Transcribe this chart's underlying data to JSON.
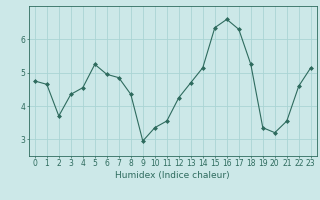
{
  "x": [
    0,
    1,
    2,
    3,
    4,
    5,
    6,
    7,
    8,
    9,
    10,
    11,
    12,
    13,
    14,
    15,
    16,
    17,
    18,
    19,
    20,
    21,
    22,
    23
  ],
  "y": [
    4.75,
    4.65,
    3.7,
    4.35,
    4.55,
    5.25,
    4.95,
    4.85,
    4.35,
    2.95,
    3.35,
    3.55,
    4.25,
    4.7,
    5.15,
    6.35,
    6.6,
    6.3,
    5.25,
    3.35,
    3.2,
    3.55,
    4.6,
    5.15
  ],
  "line_color": "#2e6b5e",
  "marker": "D",
  "marker_size": 2,
  "bg_color": "#cce8e8",
  "grid_color": "#aad4d4",
  "xlabel": "Humidex (Indice chaleur)",
  "ylim": [
    2.5,
    7.0
  ],
  "xlim": [
    -0.5,
    23.5
  ],
  "yticks": [
    3,
    4,
    5,
    6
  ],
  "xticks": [
    0,
    1,
    2,
    3,
    4,
    5,
    6,
    7,
    8,
    9,
    10,
    11,
    12,
    13,
    14,
    15,
    16,
    17,
    18,
    19,
    20,
    21,
    22,
    23
  ],
  "tick_fontsize": 5.5,
  "xlabel_fontsize": 6.5,
  "linewidth": 0.8
}
